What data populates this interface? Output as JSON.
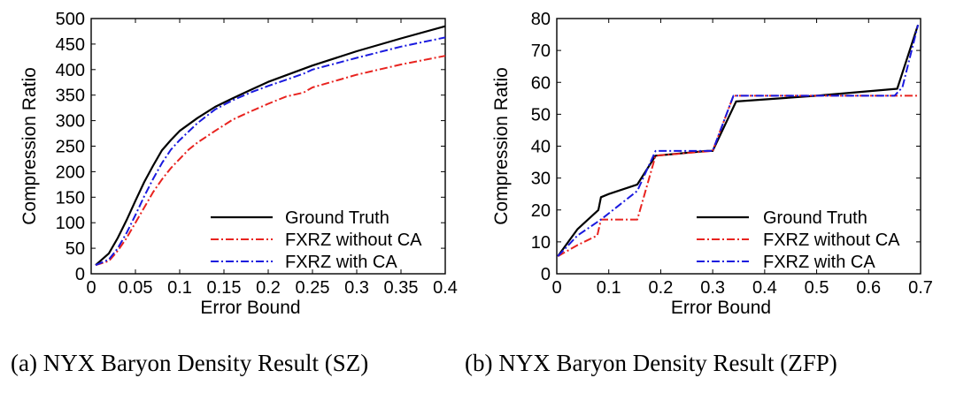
{
  "chart_data": [
    {
      "type": "line",
      "xlabel": "Error Bound",
      "ylabel": "Compression Ratio",
      "xlim": [
        0,
        0.4
      ],
      "ylim": [
        0,
        500
      ],
      "xticks": [
        "0",
        "0.05",
        "0.1",
        "0.15",
        "0.2",
        "0.25",
        "0.3",
        "0.35",
        "0.4"
      ],
      "yticks": [
        "0",
        "50",
        "100",
        "150",
        "200",
        "250",
        "300",
        "350",
        "400",
        "450",
        "500"
      ],
      "legend_position": "bottom-right",
      "caption": "(a) NYX Baryon Density Result (SZ)",
      "series": [
        {
          "name": "Ground Truth",
          "color": "#000000",
          "dash": "solid",
          "x": [
            0.005,
            0.02,
            0.03,
            0.04,
            0.05,
            0.06,
            0.07,
            0.08,
            0.09,
            0.1,
            0.12,
            0.14,
            0.16,
            0.18,
            0.2,
            0.25,
            0.3,
            0.35,
            0.4
          ],
          "y": [
            17,
            40,
            70,
            105,
            143,
            180,
            212,
            242,
            262,
            280,
            305,
            327,
            344,
            360,
            376,
            408,
            436,
            461,
            485
          ]
        },
        {
          "name": "FXRZ without CA",
          "color": "#e8231f",
          "dash": "dashdot",
          "x": [
            0.005,
            0.02,
            0.03,
            0.04,
            0.05,
            0.06,
            0.07,
            0.08,
            0.09,
            0.1,
            0.11,
            0.12,
            0.14,
            0.16,
            0.18,
            0.2,
            0.22,
            0.24,
            0.25,
            0.3,
            0.35,
            0.4
          ],
          "y": [
            17,
            25,
            45,
            70,
            100,
            130,
            160,
            185,
            207,
            225,
            243,
            257,
            280,
            302,
            318,
            333,
            347,
            355,
            365,
            390,
            410,
            427
          ]
        },
        {
          "name": "FXRZ with CA",
          "color": "#1a1adf",
          "dash": "dashdot",
          "x": [
            0.005,
            0.02,
            0.03,
            0.04,
            0.05,
            0.06,
            0.07,
            0.08,
            0.09,
            0.1,
            0.12,
            0.14,
            0.16,
            0.18,
            0.2,
            0.22,
            0.24,
            0.25,
            0.3,
            0.35,
            0.4
          ],
          "y": [
            17,
            28,
            50,
            80,
            115,
            152,
            186,
            217,
            243,
            262,
            295,
            322,
            340,
            355,
            368,
            380,
            392,
            400,
            423,
            445,
            463
          ]
        }
      ]
    },
    {
      "type": "line",
      "xlabel": "Error Bound",
      "ylabel": "Compression Ratio",
      "xlim": [
        0,
        0.7
      ],
      "ylim": [
        0,
        80
      ],
      "xticks": [
        "0",
        "0.1",
        "0.2",
        "0.3",
        "0.4",
        "0.5",
        "0.6",
        "0.7"
      ],
      "yticks": [
        "0",
        "10",
        "20",
        "30",
        "40",
        "50",
        "60",
        "70",
        "80"
      ],
      "legend_position": "bottom-right",
      "caption": "(b) NYX Baryon Density Result (ZFP)",
      "series": [
        {
          "name": "Ground Truth",
          "color": "#000000",
          "dash": "solid",
          "x": [
            0.002,
            0.04,
            0.08,
            0.085,
            0.1,
            0.155,
            0.19,
            0.29,
            0.3,
            0.345,
            0.5,
            0.655,
            0.695
          ],
          "y": [
            5.5,
            14,
            20,
            24,
            25,
            28,
            37,
            38.5,
            38.5,
            54,
            55.8,
            58,
            78
          ]
        },
        {
          "name": "FXRZ without CA",
          "color": "#e8231f",
          "dash": "dashdot",
          "x": [
            0.002,
            0.04,
            0.078,
            0.085,
            0.155,
            0.19,
            0.3,
            0.34,
            0.65,
            0.695
          ],
          "y": [
            5.5,
            9,
            12,
            17,
            17,
            37,
            38.5,
            55.8,
            55.8,
            55.8
          ]
        },
        {
          "name": "FXRZ with CA",
          "color": "#1a1adf",
          "dash": "dashdot",
          "x": [
            0.002,
            0.04,
            0.085,
            0.155,
            0.19,
            0.3,
            0.34,
            0.65,
            0.665,
            0.695
          ],
          "y": [
            5.5,
            12,
            17,
            26,
            38.5,
            38.5,
            55.8,
            55.8,
            58.5,
            78
          ]
        }
      ]
    }
  ]
}
